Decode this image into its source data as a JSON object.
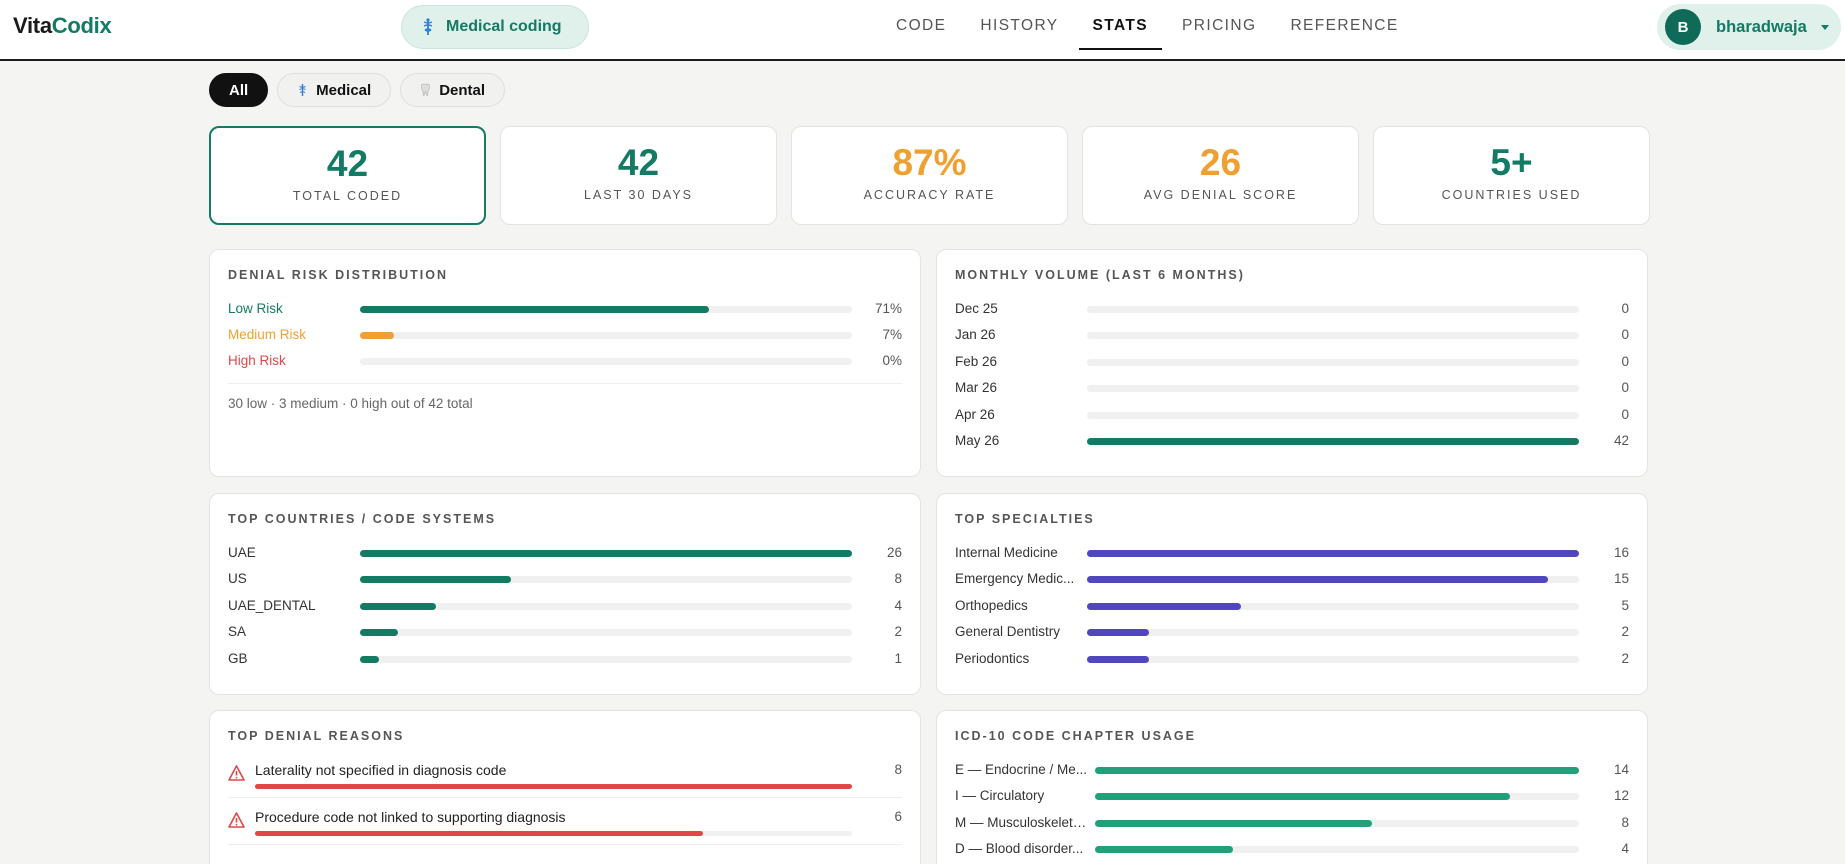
{
  "header": {
    "logo_part1": "Vita",
    "logo_part2": "Codix",
    "mode_label": "Medical coding",
    "nav": [
      "CODE",
      "HISTORY",
      "STATS",
      "PRICING",
      "REFERENCE"
    ],
    "nav_active": "STATS",
    "user_initial": "B",
    "user_name": "bharadwaja"
  },
  "filters": {
    "chips": [
      "All",
      "Medical",
      "Dental"
    ],
    "active": "All"
  },
  "kpis": [
    {
      "value": "42",
      "label": "TOTAL CODED",
      "color": "#137a64"
    },
    {
      "value": "42",
      "label": "LAST 30 DAYS",
      "color": "#137a64"
    },
    {
      "value": "87%",
      "label": "ACCURACY RATE",
      "color": "#f0a030"
    },
    {
      "value": "26",
      "label": "AVG DENIAL SCORE",
      "color": "#f0a030"
    },
    {
      "value": "5+",
      "label": "COUNTRIES USED",
      "color": "#137a64"
    }
  ],
  "denial_risk": {
    "title": "DENIAL RISK DISTRIBUTION",
    "rows": [
      {
        "label": "Low Risk",
        "value": "71%",
        "fraction": 0.71,
        "color": "#137a64"
      },
      {
        "label": "Medium Risk",
        "value": "7%",
        "fraction": 0.07,
        "color": "#f0a030"
      },
      {
        "label": "High Risk",
        "value": "0%",
        "fraction": 0.0,
        "color": "#e04848"
      }
    ],
    "summary": "30 low · 3 medium · 0 high out of 42 total"
  },
  "monthly_volume": {
    "title": "MONTHLY VOLUME (LAST 6 MONTHS)",
    "max": 42,
    "color": "#137a64",
    "rows": [
      {
        "label": "Dec 25",
        "value": 0
      },
      {
        "label": "Jan 26",
        "value": 0
      },
      {
        "label": "Feb 26",
        "value": 0
      },
      {
        "label": "Mar 26",
        "value": 0
      },
      {
        "label": "Apr 26",
        "value": 0
      },
      {
        "label": "May 26",
        "value": 42
      }
    ]
  },
  "top_countries": {
    "title": "TOP COUNTRIES / CODE SYSTEMS",
    "max": 26,
    "color": "#137a64",
    "rows": [
      {
        "label": "UAE",
        "value": 26
      },
      {
        "label": "US",
        "value": 8
      },
      {
        "label": "UAE_DENTAL",
        "value": 4
      },
      {
        "label": "SA",
        "value": 2
      },
      {
        "label": "GB",
        "value": 1
      }
    ]
  },
  "top_specialties": {
    "title": "TOP SPECIALTIES",
    "max": 16,
    "color": "#5046c0",
    "rows": [
      {
        "label": "Internal Medicine",
        "value": 16
      },
      {
        "label": "Emergency Medic...",
        "value": 15
      },
      {
        "label": "Orthopedics",
        "value": 5
      },
      {
        "label": "General Dentistry",
        "value": 2
      },
      {
        "label": "Periodontics",
        "value": 2
      }
    ]
  },
  "top_denial_reasons": {
    "title": "TOP DENIAL REASONS",
    "max": 8,
    "rows": [
      {
        "label": "Laterality not specified in diagnosis code",
        "value": 8
      },
      {
        "label": "Procedure code not linked to supporting diagnosis",
        "value": 6
      }
    ]
  },
  "icd_chapters": {
    "title": "ICD-10 CODE CHAPTER USAGE",
    "max": 14,
    "color": "#21a079",
    "rows": [
      {
        "label": "E — Endocrine / Me...",
        "value": 14
      },
      {
        "label": "I — Circulatory",
        "value": 12
      },
      {
        "label": "M — Musculoskeleta...",
        "value": 8
      },
      {
        "label": "D — Blood disorder...",
        "value": 4
      }
    ]
  }
}
